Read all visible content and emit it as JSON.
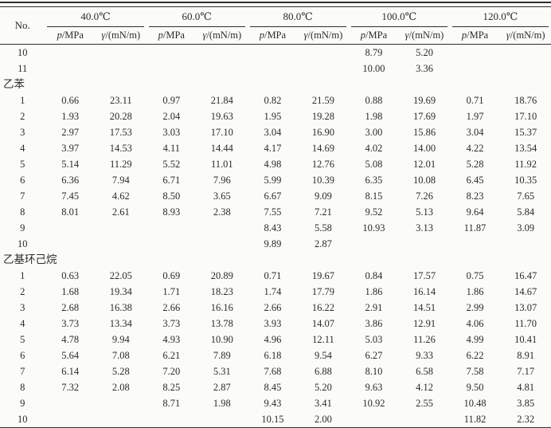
{
  "page": {
    "background_color": "#fbfbf8",
    "text_color": "#2b2b2b",
    "rule_color": "#2f2f2f"
  },
  "table": {
    "no_header": "No.",
    "temp_groups": [
      "40.0℃",
      "60.0℃",
      "80.0℃",
      "100.0℃",
      "120.0℃"
    ],
    "subheader": {
      "p_sym": "p",
      "p_unit": "/MPa",
      "g_sym": "γ",
      "g_unit": "/(mN/m)"
    },
    "sections": [
      {
        "label": "",
        "rows": [
          {
            "no": "10",
            "cells": [
              "",
              "",
              "",
              "",
              "",
              "",
              "8.79",
              "5.20",
              "",
              ""
            ]
          },
          {
            "no": "11",
            "cells": [
              "",
              "",
              "",
              "",
              "",
              "",
              "10.00",
              "3.36",
              "",
              ""
            ]
          }
        ]
      },
      {
        "label": "乙苯",
        "rows": [
          {
            "no": "1",
            "cells": [
              "0.66",
              "23.11",
              "0.97",
              "21.84",
              "0.82",
              "21.59",
              "0.88",
              "19.69",
              "0.71",
              "18.76"
            ]
          },
          {
            "no": "2",
            "cells": [
              "1.93",
              "20.28",
              "2.04",
              "19.63",
              "1.95",
              "19.28",
              "1.98",
              "17.69",
              "1.97",
              "17.10"
            ]
          },
          {
            "no": "3",
            "cells": [
              "2.97",
              "17.53",
              "3.03",
              "17.10",
              "3.04",
              "16.90",
              "3.00",
              "15.86",
              "3.04",
              "15.37"
            ]
          },
          {
            "no": "4",
            "cells": [
              "3.97",
              "14.53",
              "4.11",
              "14.44",
              "4.17",
              "14.69",
              "4.02",
              "14.00",
              "4.22",
              "13.54"
            ]
          },
          {
            "no": "5",
            "cells": [
              "5.14",
              "11.29",
              "5.52",
              "11.01",
              "4.98",
              "12.76",
              "5.08",
              "12.01",
              "5.28",
              "11.92"
            ]
          },
          {
            "no": "6",
            "cells": [
              "6.36",
              "7.94",
              "6.71",
              "7.96",
              "5.99",
              "10.39",
              "6.35",
              "10.08",
              "6.45",
              "10.35"
            ]
          },
          {
            "no": "7",
            "cells": [
              "7.45",
              "4.62",
              "8.50",
              "3.65",
              "6.67",
              "9.09",
              "8.15",
              "7.26",
              "8.23",
              "7.65"
            ]
          },
          {
            "no": "8",
            "cells": [
              "8.01",
              "2.61",
              "8.93",
              "2.38",
              "7.55",
              "7.21",
              "9.52",
              "5.13",
              "9.64",
              "5.84"
            ]
          },
          {
            "no": "9",
            "cells": [
              "",
              "",
              "",
              "",
              "8.43",
              "5.58",
              "10.93",
              "3.13",
              "11.87",
              "3.09"
            ]
          },
          {
            "no": "10",
            "cells": [
              "",
              "",
              "",
              "",
              "9.89",
              "2.87",
              "",
              "",
              "",
              ""
            ]
          }
        ]
      },
      {
        "label": "乙基环己烷",
        "rows": [
          {
            "no": "1",
            "cells": [
              "0.63",
              "22.05",
              "0.69",
              "20.89",
              "0.71",
              "19.67",
              "0.84",
              "17.57",
              "0.75",
              "16.47"
            ]
          },
          {
            "no": "2",
            "cells": [
              "1.68",
              "19.34",
              "1.71",
              "18.23",
              "1.74",
              "17.79",
              "1.86",
              "16.14",
              "1.86",
              "14.67"
            ]
          },
          {
            "no": "3",
            "cells": [
              "2.68",
              "16.38",
              "2.66",
              "16.16",
              "2.66",
              "16.22",
              "2.91",
              "14.51",
              "2.99",
              "13.07"
            ]
          },
          {
            "no": "4",
            "cells": [
              "3.73",
              "13.34",
              "3.73",
              "13.78",
              "3.93",
              "14.07",
              "3.86",
              "12.91",
              "4.06",
              "11.70"
            ]
          },
          {
            "no": "5",
            "cells": [
              "4.78",
              "9.94",
              "4.93",
              "10.90",
              "4.96",
              "12.11",
              "5.03",
              "11.26",
              "4.99",
              "10.41"
            ]
          },
          {
            "no": "6",
            "cells": [
              "5.64",
              "7.08",
              "6.21",
              "7.89",
              "6.18",
              "9.54",
              "6.27",
              "9.33",
              "6.22",
              "8.91"
            ]
          },
          {
            "no": "7",
            "cells": [
              "6.14",
              "5.28",
              "7.20",
              "5.31",
              "7.68",
              "6.88",
              "8.10",
              "6.58",
              "7.58",
              "7.17"
            ]
          },
          {
            "no": "8",
            "cells": [
              "7.32",
              "2.08",
              "8.25",
              "2.87",
              "8.45",
              "5.20",
              "9.63",
              "4.12",
              "9.50",
              "4.81"
            ]
          },
          {
            "no": "9",
            "cells": [
              "",
              "",
              "8.71",
              "1.98",
              "9.43",
              "3.41",
              "10.92",
              "2.55",
              "10.48",
              "3.85"
            ]
          },
          {
            "no": "10",
            "cells": [
              "",
              "",
              "",
              "",
              "10.15",
              "2.00",
              "",
              "",
              "11.82",
              "2.32"
            ]
          }
        ]
      }
    ]
  }
}
